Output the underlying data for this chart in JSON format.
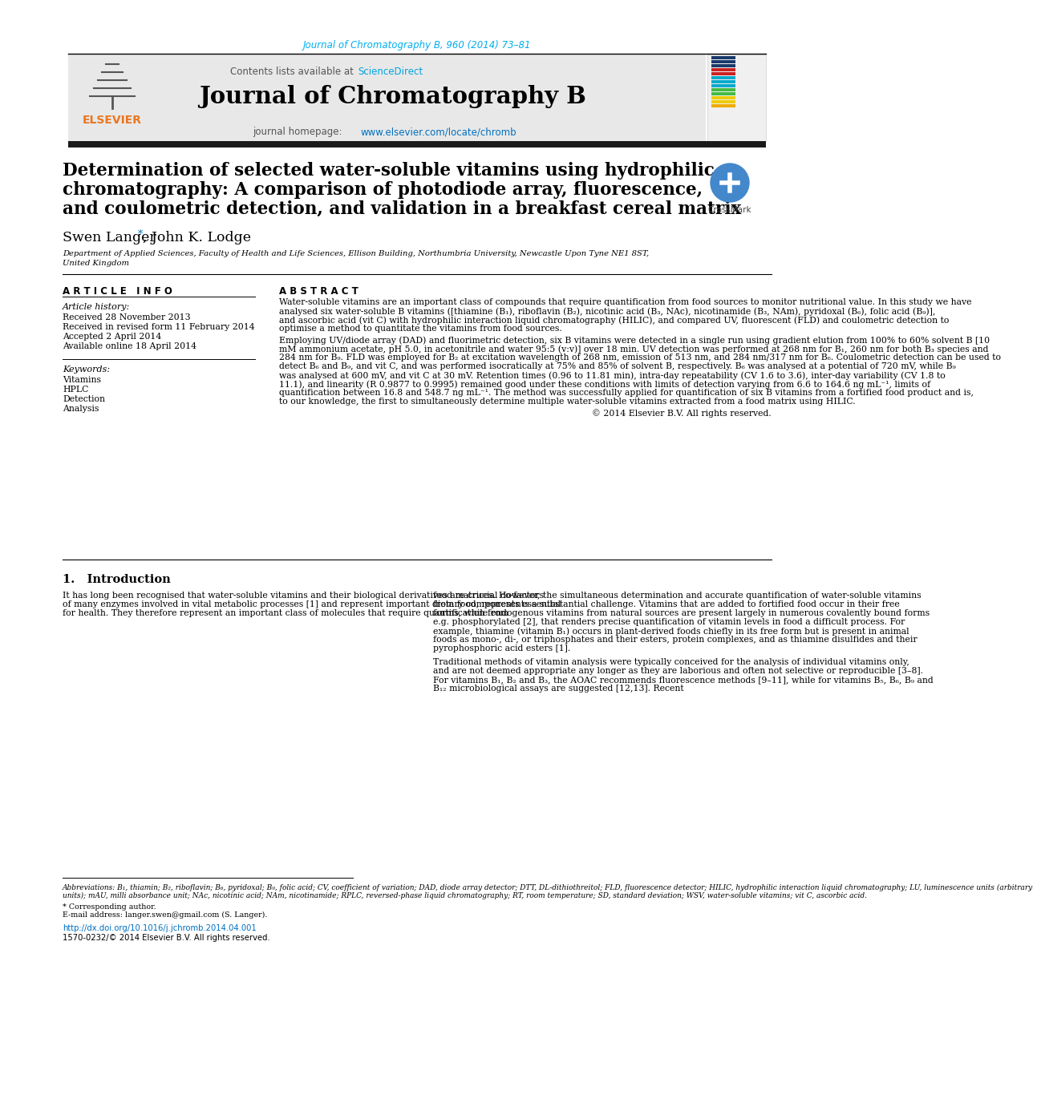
{
  "journal_citation": "Journal of Chromatography B, 960 (2014) 73–81",
  "journal_name": "Journal of Chromatography B",
  "contents_text": "Contents lists available at ScienceDirect",
  "sciencedirect_color": "#00A3E0",
  "paper_title_line1": "Determination of selected water-soluble vitamins using hydrophilic",
  "paper_title_line2": "chromatography: A comparison of photodiode array, fluorescence,",
  "paper_title_line3": "and coulometric detection, and validation in a breakfast cereal matrix",
  "affiliation_line1": "Department of Applied Sciences, Faculty of Health and Life Sciences, Ellison Building, Northumbria University, Newcastle Upon Tyne NE1 8ST,",
  "affiliation_line2": "United Kingdom",
  "article_info_header": "A R T I C L E   I N F O",
  "abstract_header": "A B S T R A C T",
  "article_history_header": "Article history:",
  "received1": "Received 28 November 2013",
  "received2": "Received in revised form 11 February 2014",
  "accepted": "Accepted 2 April 2014",
  "available": "Available online 18 April 2014",
  "keywords_header": "Keywords:",
  "keywords": [
    "Vitamins",
    "HPLC",
    "Detection",
    "Analysis"
  ],
  "abstract_para1": "Water-soluble vitamins are an important class of compounds that require quantification from food sources to monitor nutritional value. In this study we have analysed six water-soluble B vitamins ([thiamine (B₁), riboflavin (B₂), nicotinic acid (B₃, NAc), nicotinamide (B₃, NAm), pyridoxal (B₆), folic acid (B₉)], and ascorbic acid (vit C) with hydrophilic interaction liquid chromatography (HILIC), and compared UV, fluorescent (FLD) and coulometric detection to optimise a method to quantitate the vitamins from food sources.",
  "abstract_para2": "   Employing UV/diode array (DAD) and fluorimetric detection, six B vitamins were detected in a single run using gradient elution from 100% to 60% solvent B [10 mM ammonium acetate, pH 5.0, in acetonitrile and water 95:5 (v:v)] over 18 min. UV detection was performed at 268 nm for B₁, 260 nm for both B₃ species and 284 nm for B₉. FLD was employed for B₂ at excitation wavelength of 268 nm, emission of 513 nm, and 284 nm/317 nm for B₆. Coulometric detection can be used to detect B₆ and B₉, and vit C, and was performed isocratically at 75% and 85% of solvent B, respectively. B₆ was analysed at a potential of 720 mV, while B₉ was analysed at 600 mV, and vit C at 30 mV. Retention times (0.96 to 11.81 min), intra-day repeatability (CV 1.6 to 3.6), inter-day variability (CV 1.8 to 11.1), and linearity (R 0.9877 to 0.9995) remained good under these conditions with limits of detection varying from 6.6 to 164.6 ng mL⁻¹, limits of quantification between 16.8 and 548.7 ng mL⁻¹. The method was successfully applied for quantification of six B vitamins from a fortified food product and is, to our knowledge, the first to simultaneously determine multiple water-soluble vitamins extracted from a food matrix using HILIC.",
  "abstract_copyright": "© 2014 Elsevier B.V. All rights reserved.",
  "intro_header": "1.   Introduction",
  "intro_col1_para": "It has long been recognised that water-soluble vitamins and their biological derivatives are crucial co-factors of many enzymes involved in vital metabolic processes [1] and represent important dietary components essential for health. They therefore represent an important class of molecules that require quantification from",
  "intro_col2_para1": "food matrices. However, the simultaneous determination and accurate quantification of water-soluble vitamins from food, represents a substantial challenge. Vitamins that are added to fortified food occur in their free forms, while endogenous vitamins from natural sources are present largely in numerous covalently bound forms e.g. phosphorylated [2], that renders precise quantification of vitamin levels in food a difficult process. For example, thiamine (vitamin B₁) occurs in plant-derived foods chiefly in its free form but is present in animal foods as mono-, di-, or triphosphates and their esters, protein complexes, and as thiamine disulfides and their pyrophosphoric acid esters [1].",
  "intro_col2_para2": "Traditional methods of vitamin analysis were typically conceived for the analysis of individual vitamins only, and are not deemed appropriate any longer as they are laborious and often not selective or reproducible [3–8]. For vitamins B₁, B₂ and B₃, the AOAC recommends fluorescence methods [9–11], while for vitamins B₅, B₆, B₉ and B₁₂ microbiological assays are suggested [12,13]. Recent",
  "footnote_abbrev": "Abbreviations: B₁, thiamin; B₂, riboflavin; B₆, pyridoxal; B₉, folic acid; CV, coefficient of variation; DAD, diode array detector; DTT, DL-dithiothreitol; FLD, fluorescence detector; HILIC, hydrophilic interaction liquid chromatography; LU, luminescence units (arbitrary units); mAU, milli absorbance unit; NAc, nicotinic acid; NAm, nicotinamide; RPLC, reversed-phase liquid chromatography; RT, room temperature; SD, standard deviation; WSV, water-soluble vitamins; vit C, ascorbic acid.",
  "footnote_corresponding": "* Corresponding author.",
  "footnote_email": "E-mail address: langer.swen@gmail.com (S. Langer).",
  "doi_line": "http://dx.doi.org/10.1016/j.jchromb.2014.04.001",
  "issn_line": "1570-0232/© 2014 Elsevier B.V. All rights reserved.",
  "header_bar_color": "#1a1a1a",
  "orange_color": "#E87722",
  "blue_link_color": "#0070C0",
  "teal_color": "#00AEEF",
  "header_bg_color": "#e8e8e8",
  "title_font_size": 15.5,
  "body_font_size": 8.0,
  "small_font_size": 6.5
}
